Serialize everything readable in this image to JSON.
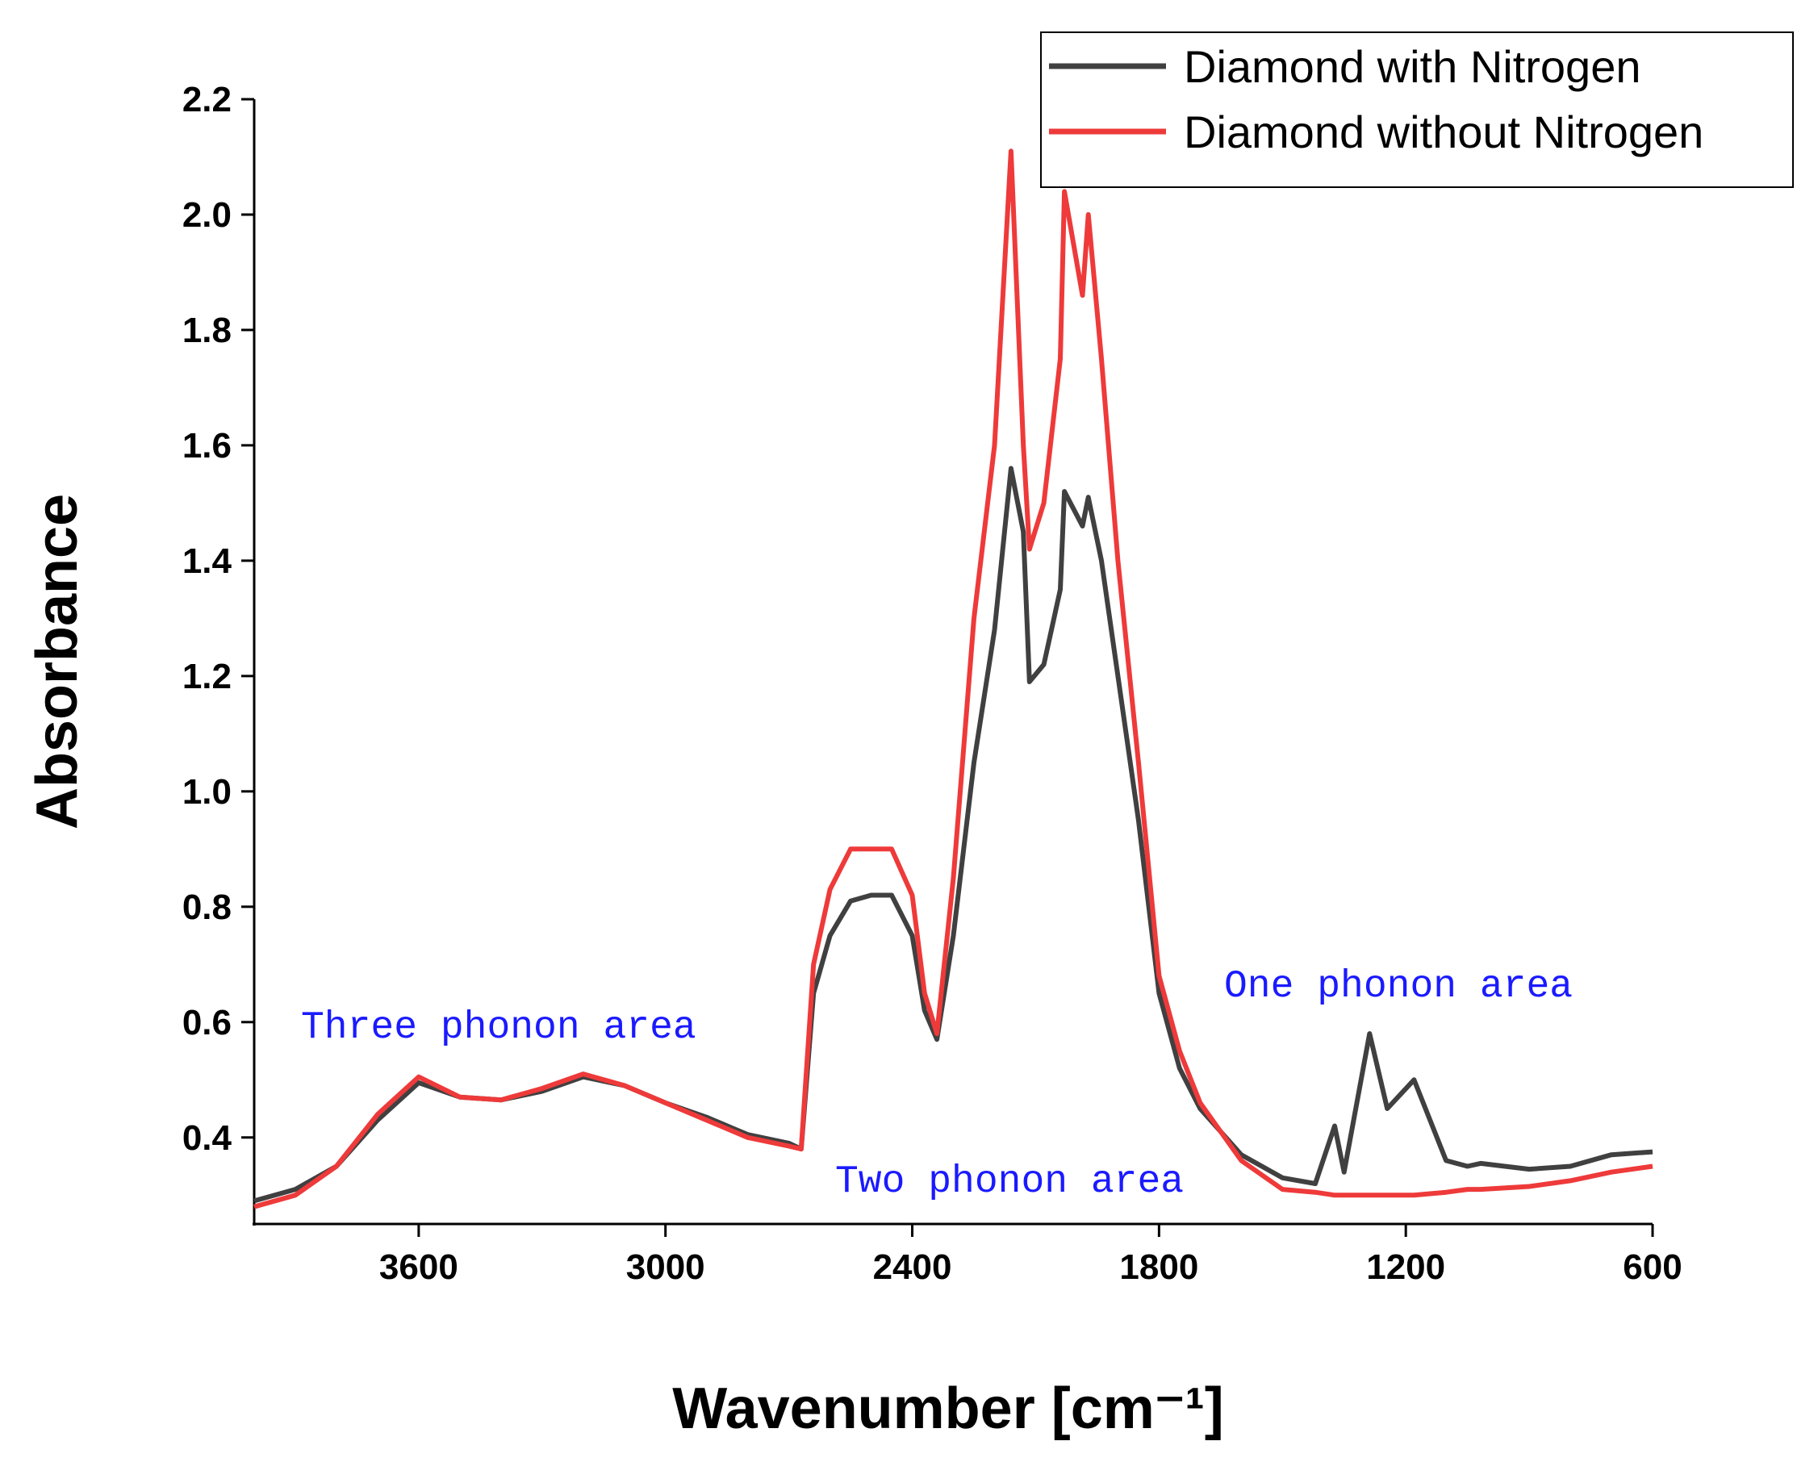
{
  "chart_data": {
    "type": "line",
    "x_label": "Wavenumber [cm⁻¹]",
    "y_label": "Absorbance",
    "annotations": [
      "Three phonon area",
      "Two phonon area",
      "One phonon area"
    ],
    "x": [
      4000,
      3900,
      3800,
      3700,
      3600,
      3500,
      3400,
      3300,
      3200,
      3100,
      3000,
      2900,
      2800,
      2700,
      2670,
      2640,
      2600,
      2550,
      2500,
      2450,
      2400,
      2370,
      2340,
      2300,
      2250,
      2200,
      2160,
      2130,
      2115,
      2080,
      2040,
      2030,
      1986,
      1972,
      1940,
      1900,
      1850,
      1800,
      1750,
      1700,
      1600,
      1500,
      1420,
      1373,
      1350,
      1288,
      1245,
      1180,
      1102,
      1050,
      1018,
      900,
      800,
      700,
      600
    ],
    "series": [
      {
        "name": "Diamond with Nitrogen",
        "color": "#404040",
        "values": [
          0.29,
          0.31,
          0.35,
          0.43,
          0.495,
          0.47,
          0.465,
          0.48,
          0.505,
          0.49,
          0.46,
          0.435,
          0.405,
          0.39,
          0.38,
          0.65,
          0.75,
          0.81,
          0.82,
          0.82,
          0.75,
          0.62,
          0.57,
          0.75,
          1.05,
          1.28,
          1.56,
          1.45,
          1.19,
          1.22,
          1.35,
          1.52,
          1.46,
          1.51,
          1.4,
          1.2,
          0.95,
          0.65,
          0.52,
          0.45,
          0.37,
          0.33,
          0.32,
          0.42,
          0.34,
          0.58,
          0.45,
          0.5,
          0.36,
          0.35,
          0.355,
          0.345,
          0.35,
          0.37,
          0.375
        ]
      },
      {
        "name": "Diamond without Nitrogen",
        "color": "#ee3a3a",
        "values": [
          0.28,
          0.3,
          0.35,
          0.44,
          0.505,
          0.47,
          0.465,
          0.485,
          0.51,
          0.49,
          0.46,
          0.43,
          0.4,
          0.385,
          0.38,
          0.7,
          0.83,
          0.9,
          0.9,
          0.9,
          0.82,
          0.65,
          0.58,
          0.85,
          1.3,
          1.6,
          2.11,
          1.6,
          1.42,
          1.5,
          1.75,
          2.04,
          1.86,
          2.0,
          1.75,
          1.4,
          1.05,
          0.68,
          0.55,
          0.46,
          0.36,
          0.31,
          0.305,
          0.3,
          0.3,
          0.3,
          0.3,
          0.3,
          0.305,
          0.31,
          0.31,
          0.315,
          0.325,
          0.34,
          0.35
        ]
      }
    ],
    "xlim": [
      4000,
      600
    ],
    "xticks": [
      3600,
      3000,
      2400,
      1800,
      1200,
      600
    ],
    "ylim": [
      0.25,
      2.2
    ],
    "yticks": [
      0.4,
      0.6,
      0.8,
      {
        "value": 1,
        "label": "1.0"
      },
      1.2,
      1.4,
      1.6,
      1.8,
      {
        "value": 2,
        "label": "2.0"
      },
      2.2
    ],
    "grid": false,
    "legend": "upper right"
  }
}
